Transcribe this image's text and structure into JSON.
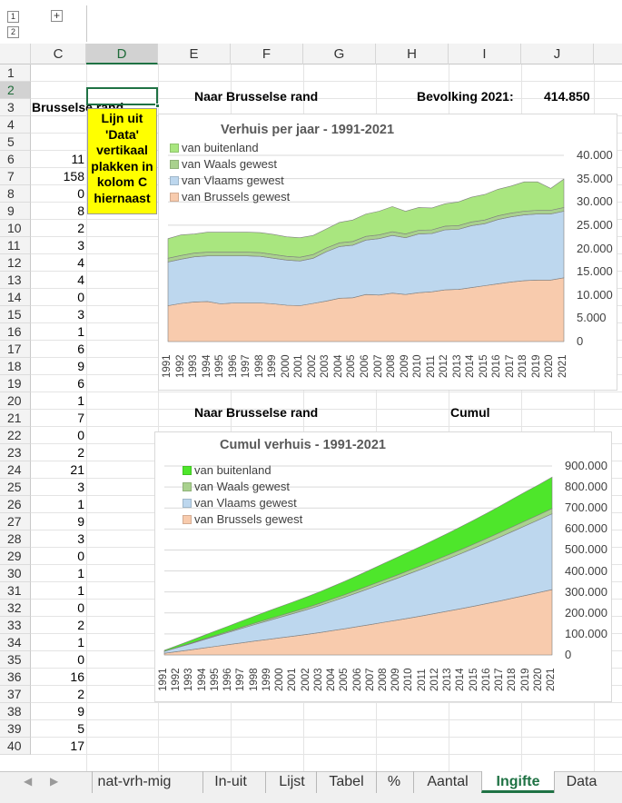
{
  "outline": {
    "level1": "1",
    "level2": "2",
    "expand": "+"
  },
  "columns": [
    "C",
    "D",
    "E",
    "F",
    "G",
    "H",
    "I",
    "J"
  ],
  "rows": [
    "1",
    "2",
    "3",
    "4",
    "5",
    "6",
    "7",
    "8",
    "9",
    "10",
    "11",
    "12",
    "13",
    "14",
    "15",
    "16",
    "17",
    "18",
    "19",
    "20",
    "21",
    "22",
    "23",
    "24",
    "25",
    "26",
    "27",
    "28",
    "29",
    "30",
    "31",
    "32",
    "33",
    "34",
    "35",
    "36",
    "37",
    "38",
    "39",
    "40"
  ],
  "colC": [
    "",
    "Brusselse rand",
    "",
    "",
    "11",
    "158",
    "0",
    "8",
    "2",
    "3",
    "4",
    "4",
    "0",
    "3",
    "1",
    "6",
    "9",
    "6",
    "1",
    "7",
    "0",
    "2",
    "21",
    "3",
    "1",
    "9",
    "3",
    "0",
    "1",
    "1",
    "0",
    "2",
    "1",
    "0",
    "16",
    "2",
    "9",
    "5",
    "17"
  ],
  "header": {
    "naar1": "Naar  Brusselse rand",
    "bevolking_label": "Bevolking 2021:",
    "bevolking_value": "414.850",
    "naar2": "Naar  Brusselse rand",
    "cumul": "Cumul"
  },
  "note": "Lijn uit\n'Data'\nvertikaal\nplakken in\nkolom C\nhiernaast",
  "tabs": [
    "nat-vrh-mig",
    "In-uit",
    "Lijst",
    "Tabel",
    "%",
    "Aantal",
    "Ingifte",
    "Data"
  ],
  "active_tab": "Ingifte",
  "colors": {
    "brussels": "#f8cbad",
    "vlaams": "#bdd7ee",
    "waals_chart1": "#a9d18e",
    "buitenland_chart1": "#a9e67f",
    "waals_chart2": "#a9d18e",
    "buitenland_chart2": "#4ee62b",
    "accent": "#1f7244"
  },
  "chart_data": [
    {
      "type": "area",
      "stacked": true,
      "title": "Verhuis  per jaar - 1991-2021",
      "x": [
        "1991",
        "1992",
        "1993",
        "1994",
        "1995",
        "1996",
        "1997",
        "1998",
        "1999",
        "2000",
        "2001",
        "2002",
        "2003",
        "2004",
        "2005",
        "2006",
        "2007",
        "2008",
        "2009",
        "2010",
        "2011",
        "2012",
        "2013",
        "2014",
        "2015",
        "2016",
        "2017",
        "2018",
        "2019",
        "2020",
        "2021"
      ],
      "ylim": [
        0,
        40000
      ],
      "yticks": [
        "0",
        "5.000",
        "10.000",
        "15.000",
        "20.000",
        "25.000",
        "30.000",
        "35.000",
        "40.000"
      ],
      "legend_position": "top-left",
      "series": [
        {
          "name": "van Brussels gewest",
          "values": [
            7700,
            8200,
            8500,
            8600,
            8100,
            8300,
            8300,
            8300,
            8100,
            7800,
            7700,
            8200,
            8700,
            9300,
            9400,
            10100,
            10000,
            10400,
            10100,
            10500,
            10700,
            11100,
            11200,
            11600,
            12000,
            12400,
            12800,
            13100,
            13200,
            13200,
            13700
          ]
        },
        {
          "name": "van Vlaams gewest",
          "values": [
            9400,
            9500,
            9700,
            9800,
            10300,
            10100,
            10100,
            10000,
            9800,
            9700,
            9600,
            9700,
            10600,
            11100,
            11300,
            11700,
            12100,
            12400,
            12200,
            12600,
            12500,
            12900,
            12900,
            13300,
            13300,
            13800,
            14000,
            14100,
            14200,
            14200,
            14300
          ]
        },
        {
          "name": "van Waals gewest",
          "values": [
            800,
            800,
            800,
            800,
            800,
            800,
            800,
            800,
            800,
            800,
            800,
            800,
            800,
            800,
            800,
            800,
            800,
            800,
            800,
            800,
            800,
            800,
            800,
            800,
            800,
            800,
            800,
            800,
            800,
            800,
            800
          ]
        },
        {
          "name": "van buitenland",
          "values": [
            4200,
            4400,
            4100,
            4300,
            4300,
            4300,
            4300,
            4300,
            4300,
            4200,
            4200,
            4100,
            4100,
            4400,
            4600,
            4800,
            5100,
            5400,
            4900,
            4900,
            4700,
            4800,
            5100,
            5300,
            5500,
            5700,
            5800,
            6300,
            6100,
            4700,
            6100
          ]
        }
      ]
    },
    {
      "type": "area",
      "stacked": true,
      "title": "Cumul verhuis  - 1991-2021",
      "x": [
        "1991",
        "1992",
        "1993",
        "1994",
        "1995",
        "1996",
        "1997",
        "1998",
        "1999",
        "2000",
        "2001",
        "2002",
        "2003",
        "2004",
        "2005",
        "2006",
        "2007",
        "2008",
        "2009",
        "2010",
        "2011",
        "2012",
        "2013",
        "2014",
        "2015",
        "2016",
        "2017",
        "2018",
        "2019",
        "2020",
        "2021"
      ],
      "ylim": [
        0,
        900000
      ],
      "yticks": [
        "0",
        "100.000",
        "200.000",
        "300.000",
        "400.000",
        "500.000",
        "600.000",
        "700.000",
        "800.000",
        "900.000"
      ],
      "legend_position": "top-left",
      "series": [
        {
          "name": "van Brussels gewest",
          "values": [
            7700,
            15900,
            24400,
            33000,
            41100,
            49400,
            57700,
            66000,
            74100,
            81900,
            89600,
            97800,
            106500,
            115800,
            125200,
            135300,
            145300,
            155700,
            165800,
            176300,
            187000,
            198100,
            209300,
            220900,
            232900,
            245300,
            258100,
            271200,
            284400,
            297600,
            311300
          ]
        },
        {
          "name": "van Vlaams gewest",
          "values": [
            9400,
            18900,
            28600,
            38400,
            48700,
            58800,
            68900,
            78900,
            88700,
            98400,
            108000,
            117700,
            128300,
            139400,
            150700,
            162400,
            174500,
            186900,
            199100,
            211700,
            224200,
            237100,
            250000,
            263300,
            276600,
            290400,
            304400,
            318500,
            332700,
            346900,
            361200
          ]
        },
        {
          "name": "van Waals gewest",
          "values": [
            800,
            1600,
            2400,
            3200,
            4000,
            4800,
            5600,
            6400,
            7200,
            8000,
            8800,
            9600,
            10400,
            11200,
            12000,
            12800,
            13600,
            14400,
            15200,
            16000,
            16800,
            17600,
            18400,
            19200,
            20000,
            20800,
            21600,
            22400,
            23200,
            24000,
            24800
          ]
        },
        {
          "name": "van buitenland",
          "values": [
            4200,
            8600,
            12700,
            17000,
            21300,
            25600,
            29900,
            34200,
            38500,
            42700,
            46900,
            51000,
            55100,
            59500,
            64100,
            68900,
            74000,
            79400,
            84300,
            89200,
            93900,
            98700,
            103800,
            109100,
            114600,
            120300,
            126100,
            132400,
            138500,
            143200,
            149300
          ]
        }
      ]
    }
  ]
}
